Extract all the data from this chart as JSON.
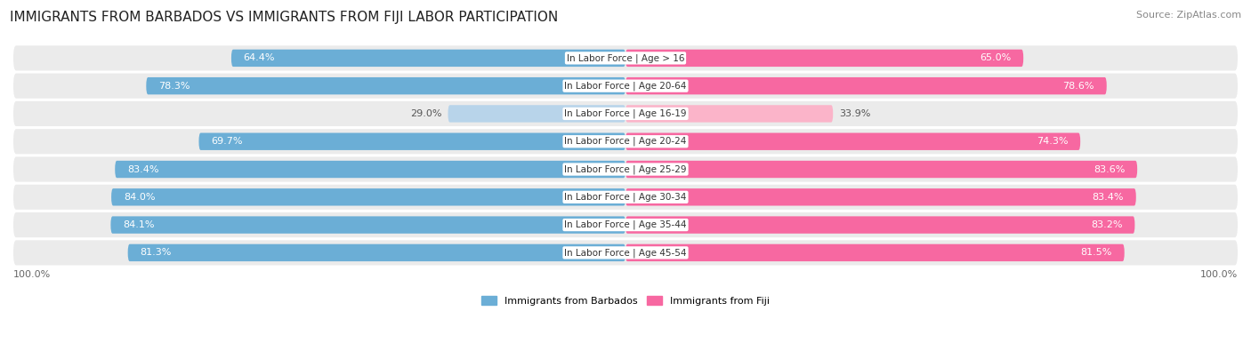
{
  "title": "IMMIGRANTS FROM BARBADOS VS IMMIGRANTS FROM FIJI LABOR PARTICIPATION",
  "source": "Source: ZipAtlas.com",
  "categories": [
    "In Labor Force | Age > 16",
    "In Labor Force | Age 20-64",
    "In Labor Force | Age 16-19",
    "In Labor Force | Age 20-24",
    "In Labor Force | Age 25-29",
    "In Labor Force | Age 30-34",
    "In Labor Force | Age 35-44",
    "In Labor Force | Age 45-54"
  ],
  "barbados_values": [
    64.4,
    78.3,
    29.0,
    69.7,
    83.4,
    84.0,
    84.1,
    81.3
  ],
  "fiji_values": [
    65.0,
    78.6,
    33.9,
    74.3,
    83.6,
    83.4,
    83.2,
    81.5
  ],
  "barbados_color": "#6baed6",
  "barbados_color_light": "#b8d4ea",
  "fiji_color": "#f768a1",
  "fiji_color_light": "#fbb4c9",
  "row_bg_color": "#ebebeb",
  "max_value": 100.0,
  "bar_height": 0.62,
  "legend_barbados": "Immigrants from Barbados",
  "legend_fiji": "Immigrants from Fiji",
  "title_fontsize": 11,
  "label_fontsize": 8,
  "value_fontsize": 8,
  "source_fontsize": 8,
  "cat_fontsize": 7.5
}
